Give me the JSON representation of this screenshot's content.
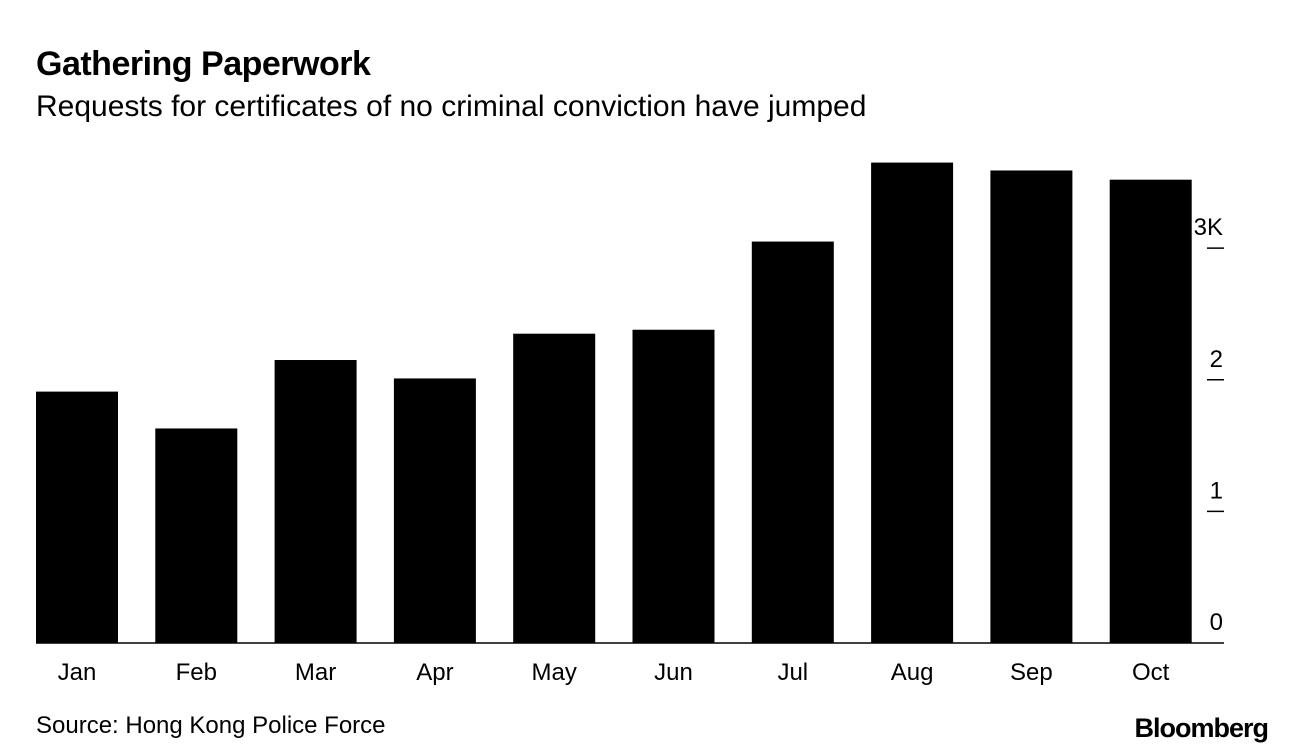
{
  "chart_data": {
    "type": "bar",
    "title": "Gathering Paperwork",
    "subtitle": "Requests for certificates of no criminal conviction have jumped",
    "categories": [
      "Jan",
      "Feb",
      "Mar",
      "Apr",
      "May",
      "Jun",
      "Jul",
      "Aug",
      "Sep",
      "Oct"
    ],
    "values": [
      1.91,
      1.63,
      2.15,
      2.01,
      2.35,
      2.38,
      3.05,
      3.65,
      3.59,
      3.52
    ],
    "color": "#000000",
    "ylim": [
      0,
      3.7
    ],
    "yticks": [
      0,
      1,
      2,
      {
        "value": 3,
        "label": "3K"
      }
    ],
    "source": "Source: Hong Kong Police Force",
    "brand": "Bloomberg"
  }
}
